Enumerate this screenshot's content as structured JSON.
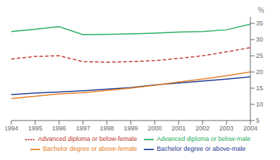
{
  "chart_data": {
    "type": "line",
    "x": [
      1994,
      1995,
      1996,
      1997,
      1998,
      1999,
      2000,
      2001,
      2002,
      2003,
      2004
    ],
    "xlim": [
      1994,
      2004
    ],
    "xticks": [
      1994,
      1995,
      1996,
      1997,
      1998,
      1999,
      2000,
      2001,
      2002,
      2003,
      2004
    ],
    "ylim": [
      5,
      37
    ],
    "yticks": [
      5,
      10,
      15,
      20,
      25,
      30,
      35
    ],
    "ylabel": "%",
    "legend": "bottom",
    "grid": false,
    "series": [
      {
        "name": "Bachelor degree or above-male",
        "color": "#1f3a93",
        "line_style": "solid",
        "values": [
          13.0,
          13.5,
          13.8,
          14.2,
          14.7,
          15.2,
          16.0,
          16.6,
          17.2,
          17.8,
          18.5
        ]
      },
      {
        "name": "Bachelor degree or above-female",
        "color": "#e67e22",
        "line_style": "solid",
        "values": [
          11.8,
          12.5,
          13.2,
          13.6,
          14.3,
          15.0,
          15.9,
          16.9,
          17.8,
          18.8,
          20.0
        ]
      },
      {
        "name": "Advanced diploma or below-male",
        "color": "#27ae60",
        "line_style": "solid",
        "values": [
          32.5,
          33.2,
          34.0,
          31.5,
          31.6,
          31.8,
          32.0,
          32.3,
          32.5,
          33.0,
          34.8
        ]
      },
      {
        "name": "Advanced diploma or below-female",
        "color": "#c0392b",
        "line_style": "dashed",
        "values": [
          24.0,
          24.8,
          25.0,
          23.2,
          23.0,
          23.2,
          23.5,
          24.2,
          25.0,
          26.2,
          27.5
        ]
      }
    ]
  }
}
